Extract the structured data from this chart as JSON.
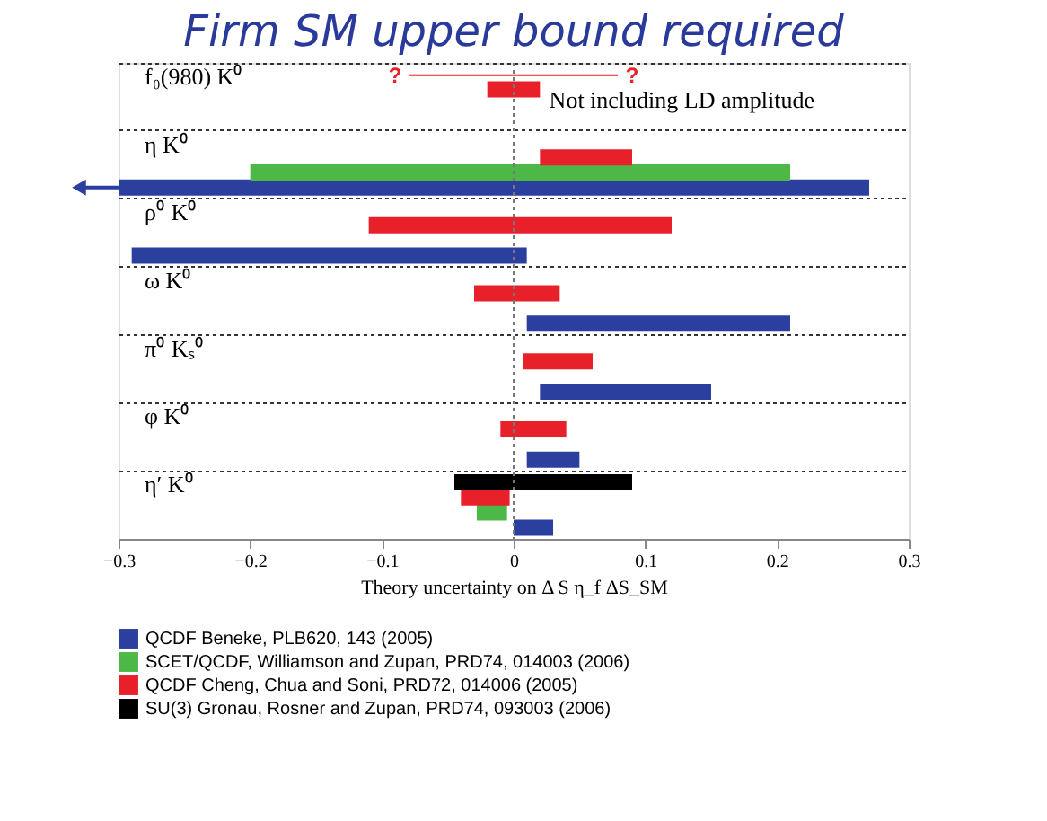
{
  "chart_data": {
    "type": "bar",
    "orientation": "horizontal",
    "title": "Firm SM upper bound required",
    "xlabel": "Theory uncertainty on Δ S    η_f ΔS_SM",
    "categories": [
      "f₀(980) K⁰",
      "η K⁰",
      "ρ⁰ K⁰",
      "ω K⁰",
      "π⁰ Kₛ⁰",
      "φ K⁰",
      "η′ K⁰"
    ],
    "series": [
      {
        "name": "QCDF Beneke, PLB620, 143 (2005)",
        "color": "#2b3f9e",
        "base": [
          null,
          -0.3,
          -0.29,
          0.01,
          0.02,
          0.01,
          0.0
        ],
        "values": [
          null,
          0.57,
          0.3,
          0.2,
          0.13,
          0.04,
          0.03
        ]
      },
      {
        "name": "SCET/QCDF, Williamson and Zupan, PRD74, 014003 (2006)",
        "color": "#4db847",
        "base": [
          null,
          -0.2,
          null,
          null,
          null,
          null,
          -0.028
        ],
        "values": [
          null,
          0.41,
          null,
          null,
          null,
          null,
          0.023
        ]
      },
      {
        "name": "QCDF Cheng, Chua and Soni, PRD72, 014006 (2005)",
        "color": "#e8202a",
        "base": [
          -0.02,
          0.02,
          -0.11,
          -0.03,
          0.007,
          -0.01,
          -0.04
        ],
        "values": [
          0.04,
          0.07,
          0.23,
          0.065,
          0.053,
          0.05,
          0.037
        ]
      },
      {
        "name": "SU(3) Gronau, Rosner and Zupan, PRD74, 093003 (2006)",
        "color": "#000000",
        "base": [
          null,
          null,
          null,
          null,
          null,
          null,
          -0.045
        ],
        "values": [
          null,
          null,
          null,
          null,
          null,
          null,
          0.135
        ]
      }
    ],
    "xlim": [
      -0.3,
      0.3
    ],
    "xticks": [
      -0.3,
      -0.2,
      -0.1,
      {
        "value": 0,
        "label": "0"
      },
      0.1,
      0.2,
      0.3
    ],
    "ref_lines": [
      {
        "axis": "x",
        "value": 0,
        "line_style": "dotted",
        "color": "#777777"
      }
    ],
    "annotations": [
      "Not including LD amplitude",
      "?",
      "?"
    ],
    "grid": "y",
    "legend": "bottom"
  }
}
